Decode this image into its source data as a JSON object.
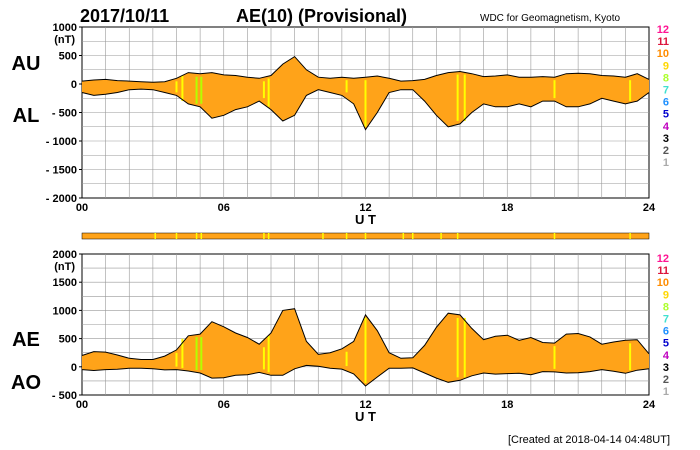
{
  "header": {
    "date": "2017/10/11",
    "title": "AE(10) (Provisional)",
    "source": "WDC for Geomagnetism, Kyoto"
  },
  "footer": {
    "created": "[Created at 2018-04-14 04:48UT]"
  },
  "colors": {
    "fill": "#ffa319",
    "line": "#000000",
    "grid": "#999999",
    "highlight": "#ffff00",
    "highlight_green": "#b4ff00"
  },
  "legend_levels": [
    {
      "label": "12",
      "color": "#ff1493"
    },
    {
      "label": "11",
      "color": "#dc143c"
    },
    {
      "label": "10",
      "color": "#ff8c00"
    },
    {
      "label": "9",
      "color": "#ffd700"
    },
    {
      "label": "8",
      "color": "#adff2f"
    },
    {
      "label": "7",
      "color": "#40e0d0"
    },
    {
      "label": "6",
      "color": "#1e90ff"
    },
    {
      "label": "5",
      "color": "#0000cd"
    },
    {
      "label": "4",
      "color": "#c000c0"
    },
    {
      "label": "3",
      "color": "#000000"
    },
    {
      "label": "2",
      "color": "#555555"
    },
    {
      "label": "1",
      "color": "#aaaaaa"
    }
  ],
  "chart_data": [
    {
      "type": "area",
      "panel": "AU/AL",
      "series_labels": [
        "AU",
        "AL"
      ],
      "yunit": "(nT)",
      "xlabel": "U T",
      "xlim": [
        0,
        24
      ],
      "ylim": [
        -2000,
        1000
      ],
      "xticks": [
        {
          "v": 0,
          "t": "00"
        },
        {
          "v": 6,
          "t": "06"
        },
        {
          "v": 12,
          "t": "12"
        },
        {
          "v": 18,
          "t": "18"
        },
        {
          "v": 24,
          "t": "24"
        }
      ],
      "yticks": [
        {
          "v": 1000,
          "t": "1000"
        },
        {
          "v": 500,
          "t": "500"
        },
        {
          "v": 0,
          "t": "0"
        },
        {
          "v": -500,
          "t": "- 500"
        },
        {
          "v": -1000,
          "t": "- 1000"
        },
        {
          "v": -1500,
          "t": "- 1500"
        },
        {
          "v": -2000,
          "t": "- 2000"
        }
      ],
      "x": [
        0,
        0.5,
        1,
        1.5,
        2,
        2.5,
        3,
        3.5,
        4,
        4.5,
        5,
        5.5,
        6,
        6.5,
        7,
        7.5,
        8,
        8.5,
        9,
        9.5,
        10,
        10.5,
        11,
        11.5,
        12,
        12.5,
        13,
        13.5,
        14,
        14.5,
        15,
        15.5,
        16,
        16.5,
        17,
        17.5,
        18,
        18.5,
        19,
        19.5,
        20,
        20.5,
        21,
        21.5,
        22,
        22.5,
        23,
        23.5,
        24
      ],
      "upper": [
        50,
        70,
        80,
        60,
        50,
        40,
        30,
        40,
        100,
        200,
        180,
        200,
        160,
        150,
        120,
        100,
        150,
        350,
        480,
        250,
        120,
        100,
        120,
        100,
        120,
        140,
        100,
        50,
        60,
        80,
        150,
        200,
        220,
        180,
        130,
        140,
        160,
        120,
        120,
        130,
        120,
        180,
        190,
        180,
        150,
        140,
        120,
        180,
        80
      ],
      "lower": [
        -150,
        -200,
        -180,
        -150,
        -100,
        -90,
        -100,
        -150,
        -200,
        -350,
        -400,
        -600,
        -550,
        -450,
        -400,
        -300,
        -450,
        -650,
        -550,
        -200,
        -100,
        -150,
        -200,
        -350,
        -800,
        -500,
        -150,
        -100,
        -100,
        -300,
        -550,
        -750,
        -700,
        -500,
        -350,
        -400,
        -400,
        -350,
        -400,
        -300,
        -300,
        -400,
        -400,
        -350,
        -250,
        -300,
        -350,
        -300,
        -150
      ]
    },
    {
      "type": "area",
      "panel": "AE/AO",
      "series_labels": [
        "AE",
        "AO"
      ],
      "yunit": "(nT)",
      "xlabel": "U T",
      "xlim": [
        0,
        24
      ],
      "ylim": [
        -500,
        2000
      ],
      "xticks": [
        {
          "v": 0,
          "t": "00"
        },
        {
          "v": 6,
          "t": "06"
        },
        {
          "v": 12,
          "t": "12"
        },
        {
          "v": 18,
          "t": "18"
        },
        {
          "v": 24,
          "t": "24"
        }
      ],
      "yticks": [
        {
          "v": 2000,
          "t": "2000"
        },
        {
          "v": 1500,
          "t": "1500"
        },
        {
          "v": 1000,
          "t": "1000"
        },
        {
          "v": 500,
          "t": "500"
        },
        {
          "v": 0,
          "t": "0"
        },
        {
          "v": -500,
          "t": "- 500"
        }
      ],
      "x": [
        0,
        0.5,
        1,
        1.5,
        2,
        2.5,
        3,
        3.5,
        4,
        4.5,
        5,
        5.5,
        6,
        6.5,
        7,
        7.5,
        8,
        8.5,
        9,
        9.5,
        10,
        10.5,
        11,
        11.5,
        12,
        12.5,
        13,
        13.5,
        14,
        14.5,
        15,
        15.5,
        16,
        16.5,
        17,
        17.5,
        18,
        18.5,
        19,
        19.5,
        20,
        20.5,
        21,
        21.5,
        22,
        22.5,
        23,
        23.5,
        24
      ],
      "upper": [
        200,
        270,
        260,
        210,
        150,
        130,
        130,
        190,
        300,
        550,
        580,
        800,
        710,
        600,
        520,
        400,
        600,
        1000,
        1030,
        450,
        220,
        250,
        320,
        450,
        920,
        640,
        250,
        150,
        160,
        380,
        700,
        950,
        920,
        680,
        480,
        540,
        560,
        470,
        520,
        430,
        420,
        580,
        590,
        530,
        400,
        440,
        470,
        480,
        230
      ],
      "lower": [
        -50,
        -65,
        -50,
        -45,
        -25,
        -25,
        -35,
        -55,
        -50,
        -75,
        -110,
        -200,
        -195,
        -150,
        -140,
        -100,
        -150,
        -150,
        -35,
        25,
        10,
        -25,
        -40,
        -125,
        -340,
        -180,
        -25,
        -25,
        -20,
        -110,
        -200,
        -275,
        -240,
        -160,
        -110,
        -130,
        -120,
        -115,
        -140,
        -85,
        -90,
        -110,
        -105,
        -85,
        -50,
        -80,
        -115,
        -60,
        -35
      ]
    }
  ],
  "highlight_hours": [
    {
      "x": 4.0,
      "color": "#ffff00"
    },
    {
      "x": 4.25,
      "color": "#ffff00"
    },
    {
      "x": 4.85,
      "color": "#b4ff00"
    },
    {
      "x": 5.05,
      "color": "#b4ff00"
    },
    {
      "x": 7.7,
      "color": "#ffff00"
    },
    {
      "x": 7.9,
      "color": "#ffff00"
    },
    {
      "x": 11.2,
      "color": "#ffff00"
    },
    {
      "x": 12.0,
      "color": "#ffff00"
    },
    {
      "x": 15.9,
      "color": "#ffff00"
    },
    {
      "x": 16.2,
      "color": "#ffff00"
    },
    {
      "x": 20.0,
      "color": "#ffff00"
    },
    {
      "x": 23.2,
      "color": "#ffff00"
    }
  ],
  "status_bar": {
    "highlights": [
      3.1,
      4.0,
      4.85,
      5.05,
      7.7,
      7.9,
      10.2,
      11.2,
      12.0,
      13.6,
      14.0,
      15.2,
      15.9,
      20.0,
      23.2
    ]
  }
}
